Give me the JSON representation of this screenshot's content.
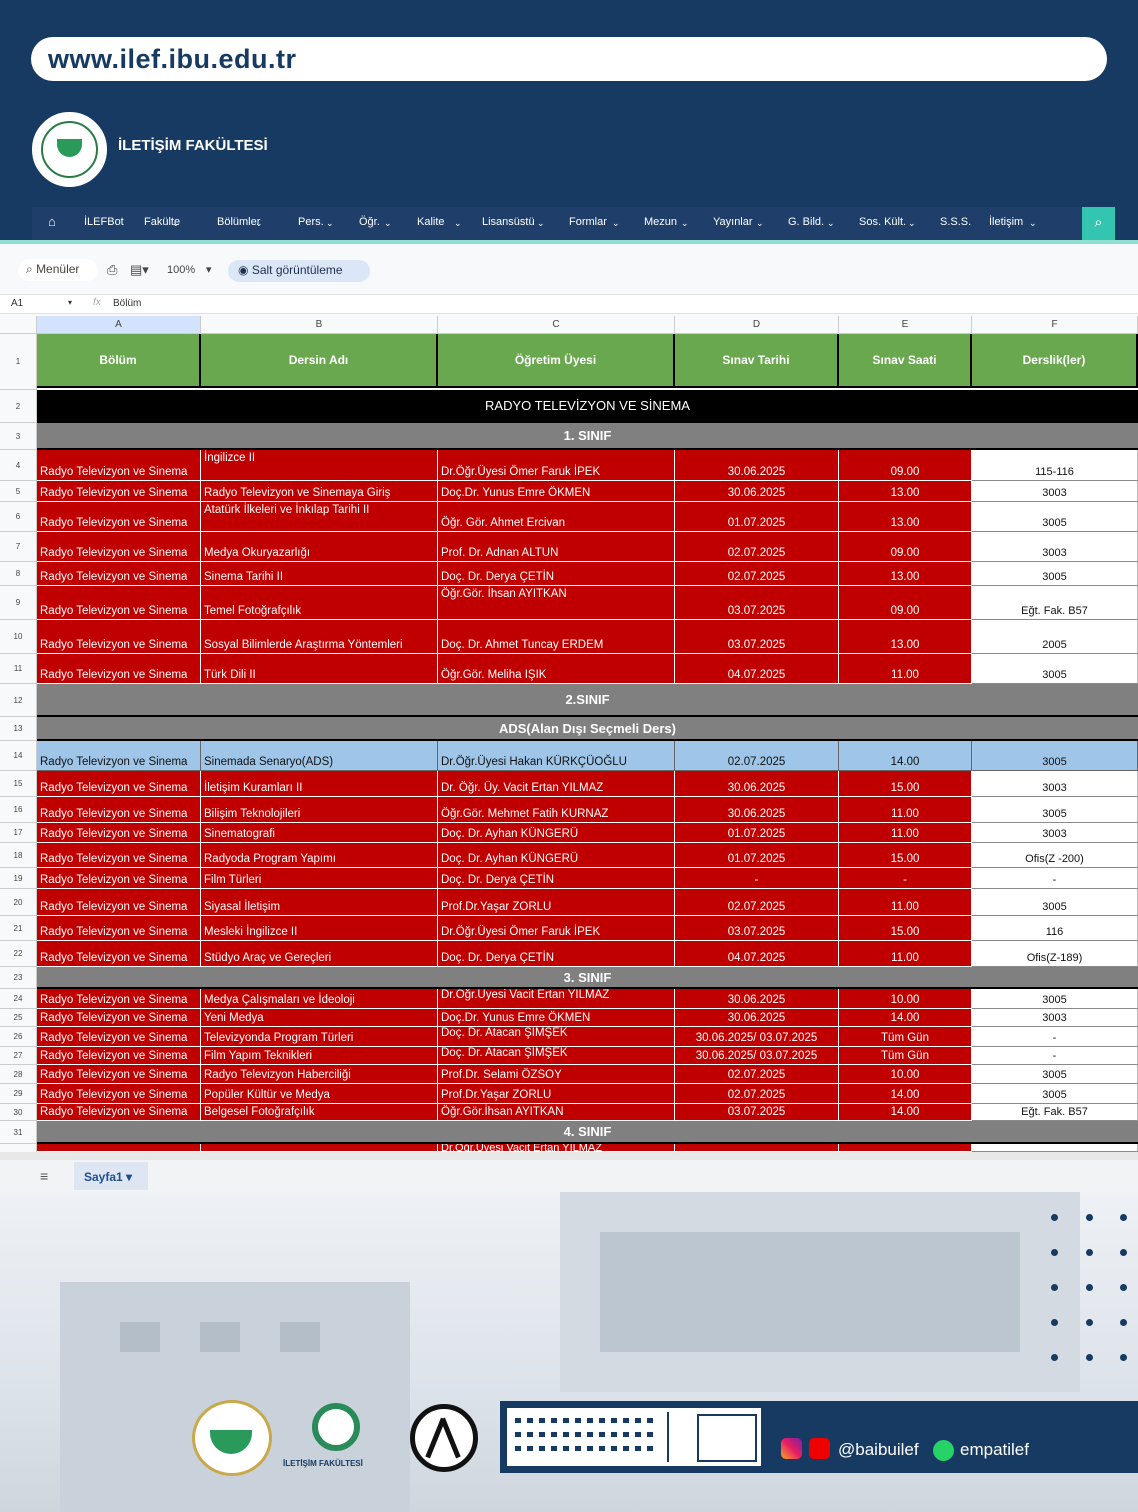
{
  "site": {
    "url": "www.ilef.ibu.edu.tr",
    "faculty_name": "İLETİŞİM FAKÜLTESİ"
  },
  "nav": [
    "İLEFBot",
    "Fakülte",
    "Bölümler",
    "Pers.",
    "Öğr.",
    "Kalite",
    "Lisansüstü",
    "Formlar",
    "Mezun",
    "Yayınlar",
    "G. Bild.",
    "Sos. Kült.",
    "S.S.S.",
    "İletişim"
  ],
  "toolbar": {
    "menus": "Menüler",
    "zoom": "100%",
    "readonly": "Salt görüntüleme",
    "cell_ref": "A1",
    "formula": "Bölüm"
  },
  "columns": [
    "A",
    "B",
    "C",
    "D",
    "E",
    "F"
  ],
  "headers": [
    "Bölüm",
    "Dersin Adı",
    "Öğretim Üyesi",
    "Sınav Tarihi",
    "Sınav Saati",
    "Derslik(ler)"
  ],
  "sections": {
    "program": "RADYO TELEVİZYON VE SİNEMA",
    "c1": "1. SINIF",
    "c2": "2.SINIF",
    "ads": "ADS(Alan Dışı Seçmeli Ders)",
    "c3": "3. SINIF",
    "c4": "4. SINIF"
  },
  "rows": [
    {
      "n": "4",
      "d": "Radyo Televizyon ve Sinema",
      "course": "İngilizce II",
      "lect": "Dr.Öğr.Üyesi Ömer Faruk İPEK",
      "date": "30.06.2025",
      "time": "09.00",
      "room": "115-116"
    },
    {
      "n": "5",
      "d": "Radyo Televizyon ve Sinema",
      "course": "Radyo Televizyon ve Sinemaya Giriş",
      "lect": "Doç.Dr. Yunus Emre ÖKMEN",
      "date": "30.06.2025",
      "time": "13.00",
      "room": "3003"
    },
    {
      "n": "6",
      "d": "Radyo Televizyon ve Sinema",
      "course": "Atatürk İlkeleri ve İnkılap Tarihi II",
      "lect": "Öğr. Gör. Ahmet Ercivan",
      "date": "01.07.2025",
      "time": "13.00",
      "room": "3005"
    },
    {
      "n": "7",
      "d": "Radyo Televizyon ve Sinema",
      "course": "Medya Okuryazarlığı",
      "lect": "Prof. Dr. Adnan ALTUN",
      "date": "02.07.2025",
      "time": "09.00",
      "room": "3003"
    },
    {
      "n": "8",
      "d": "Radyo Televizyon ve Sinema",
      "course": "Sinema Tarihi II",
      "lect": "Doç. Dr. Derya ÇETİN",
      "date": "02.07.2025",
      "time": "13.00",
      "room": "3005"
    },
    {
      "n": "9",
      "d": "Radyo Televizyon ve Sinema",
      "course": "Temel Fotoğrafçılık",
      "lect": "Öğr.Gör. İhsan AYITKAN",
      "date": "03.07.2025",
      "time": "09.00",
      "room": "Eğt. Fak. B57"
    },
    {
      "n": "10",
      "d": "Radyo Televizyon ve Sinema",
      "course": "Sosyal Bilimlerde Araştırma Yöntemleri",
      "lect": "Doç. Dr. Ahmet Tuncay  ERDEM",
      "date": "03.07.2025",
      "time": "13.00",
      "room": "2005"
    },
    {
      "n": "11",
      "d": "Radyo Televizyon ve Sinema",
      "course": "Türk Dili II",
      "lect": "Öğr.Gör. Meliha IŞIK",
      "date": "04.07.2025",
      "time": "11.00",
      "room": "3005"
    },
    {
      "n": "14",
      "d": "Radyo Televizyon ve Sinema",
      "course": "Sinemada Senaryo(ADS)",
      "lect": "Dr.Öğr.Üyesi Hakan KÜRKÇÜOĞLU",
      "date": "02.07.2025",
      "time": "14.00",
      "room": "3005"
    },
    {
      "n": "15",
      "d": "Radyo Televizyon ve Sinema",
      "course": "İletişim Kuramları II",
      "lect": "Dr. Öğr. Üy. Vacit Ertan YILMAZ",
      "date": "30.06.2025",
      "time": "15.00",
      "room": "3003"
    },
    {
      "n": "16",
      "d": "Radyo Televizyon ve Sinema",
      "course": "Bilişim Teknolojileri",
      "lect": "Öğr.Gör. Mehmet Fatih KURNAZ",
      "date": "30.06.2025",
      "time": "11.00",
      "room": "3005"
    },
    {
      "n": "17",
      "d": "Radyo Televizyon ve Sinema",
      "course": "Sinematografi",
      "lect": "Doç. Dr. Ayhan KÜNGERÜ",
      "date": "01.07.2025",
      "time": "11.00",
      "room": "3003"
    },
    {
      "n": "18",
      "d": "Radyo Televizyon ve Sinema",
      "course": "Radyoda Program Yapımı",
      "lect": "Doç. Dr. Ayhan KÜNGERÜ",
      "date": "01.07.2025",
      "time": "15.00",
      "room": "Ofis(Z -200)"
    },
    {
      "n": "19",
      "d": "Radyo Televizyon ve Sinema",
      "course": "Film Türleri",
      "lect": "Doç. Dr. Derya ÇETİN",
      "date": "-",
      "time": "-",
      "room": "-"
    },
    {
      "n": "20",
      "d": "Radyo Televizyon ve Sinema",
      "course": "Siyasal İletişim",
      "lect": "Prof.Dr.Yaşar ZORLU",
      "date": "02.07.2025",
      "time": "11.00",
      "room": "3005"
    },
    {
      "n": "21",
      "d": "Radyo Televizyon ve Sinema",
      "course": "Mesleki İngilizce II",
      "lect": "Dr.Öğr.Üyesi Ömer Faruk İPEK",
      "date": "03.07.2025",
      "time": "15.00",
      "room": "116"
    },
    {
      "n": "22",
      "d": "Radyo Televizyon ve Sinema",
      "course": "Stüdyo Araç ve Gereçleri",
      "lect": "Doç. Dr. Derya ÇETİN",
      "date": "04.07.2025",
      "time": "11.00",
      "room": "Ofis(Z-189)"
    },
    {
      "n": "24",
      "d": "Radyo Televizyon ve Sinema",
      "course": "Medya Çalışmaları ve İdeoloji",
      "lect": "Dr.Öğr.Üyesi Vacit Ertan YILMAZ",
      "date": "30.06.2025",
      "time": "10.00",
      "room": "3005"
    },
    {
      "n": "25",
      "d": "Radyo Televizyon ve Sinema",
      "course": "Yeni Medya",
      "lect": "Doç.Dr. Yunus Emre ÖKMEN",
      "date": "30.06.2025",
      "time": "14.00",
      "room": "3003"
    },
    {
      "n": "26",
      "d": "Radyo Televizyon ve Sinema",
      "course": "Televizyonda Program Türleri",
      "lect": "Doç. Dr. Atacan ŞİMŞEK",
      "date": "30.06.2025/ 03.07.2025",
      "time": "Tüm Gün",
      "room": "-"
    },
    {
      "n": "27",
      "d": "Radyo Televizyon ve Sinema",
      "course": "Film Yapım Teknikleri",
      "lect": "Doç. Dr. Atacan ŞİMŞEK",
      "date": "30.06.2025/ 03.07.2025",
      "time": "Tüm Gün",
      "room": "-"
    },
    {
      "n": "28",
      "d": "Radyo Televizyon ve Sinema",
      "course": "Radyo Televizyon Haberciliği",
      "lect": "Prof.Dr. Selami ÖZSOY",
      "date": "02.07.2025",
      "time": "10.00",
      "room": "3005"
    },
    {
      "n": "29",
      "d": "Radyo Televizyon ve Sinema",
      "course": "Popüler Kültür ve Medya",
      "lect": "Prof.Dr.Yaşar ZORLU",
      "date": "02.07.2025",
      "time": "14.00",
      "room": "3005"
    },
    {
      "n": "30",
      "d": "Radyo Televizyon ve Sinema",
      "course": "Belgesel Fotoğrafçılık",
      "lect": "Öğr.Gör.İhsan AYITKAN",
      "date": "03.07.2025",
      "time": "14.00",
      "room": "Eğt. Fak. B57"
    }
  ],
  "row_labels": [
    "1",
    "2",
    "3",
    "12",
    "13",
    "23",
    "31"
  ],
  "partial_row_text": "Dr.Öğr.Üyesi Vacit Ertan YILMAZ",
  "sheet_tab": "Sayfa1",
  "footer": {
    "instagram": "@baibuilef",
    "whatsapp": "empatilef",
    "logo2_caption": "İLETİŞİM FAKÜLTESİ"
  },
  "colors": {
    "navy": "#173a63",
    "red": "#c00000",
    "green": "#6aa84f",
    "teal": "#33c5b0"
  }
}
